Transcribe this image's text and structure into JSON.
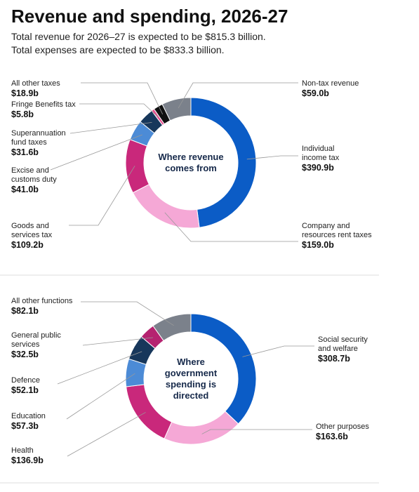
{
  "title": "Revenue and spending, 2026-27",
  "subtitle": [
    "Total revenue for 2026–27 is expected to be $815.3 billion.",
    "Total expenses are expected to be $833.3 billion."
  ],
  "chart_data": [
    {
      "type": "donut",
      "center_label": "Where revenue comes from",
      "categories": [
        "Individual income tax",
        "Company and resources rent taxes",
        "Goods and services tax",
        "Excise and customs duty",
        "Superannuation fund taxes",
        "Fringe Benefits tax",
        "All other taxes",
        "Non-tax revenue"
      ],
      "values": [
        390.9,
        159.0,
        109.2,
        41.0,
        31.6,
        5.8,
        18.9,
        59.0
      ],
      "value_labels": [
        "$390.9b",
        "$159.0b",
        "$109.2b",
        "$41.0b",
        "$31.6b",
        "$5.8b",
        "$18.9b",
        "$59.0b"
      ],
      "colors": [
        "#0b5cc6",
        "#f5a8d6",
        "#c9287b",
        "#4c8bd6",
        "#17375b",
        "#e8508f",
        "#111111",
        "#7b818b"
      ]
    },
    {
      "type": "donut",
      "center_label": "Where government spending is directed",
      "categories": [
        "Social security and welfare",
        "Other purposes",
        "Health",
        "Education",
        "Defence",
        "General public services",
        "All other functions"
      ],
      "values": [
        308.7,
        163.6,
        136.9,
        57.3,
        52.1,
        32.5,
        82.1
      ],
      "value_labels": [
        "$308.7b",
        "$163.6b",
        "$136.9b",
        "$57.3b",
        "$52.1b",
        "$32.5b",
        "$82.1b"
      ],
      "colors": [
        "#0b5cc6",
        "#f5a8d6",
        "#c9287b",
        "#4c8bd6",
        "#17375b",
        "#b52370",
        "#7b818b"
      ]
    }
  ]
}
